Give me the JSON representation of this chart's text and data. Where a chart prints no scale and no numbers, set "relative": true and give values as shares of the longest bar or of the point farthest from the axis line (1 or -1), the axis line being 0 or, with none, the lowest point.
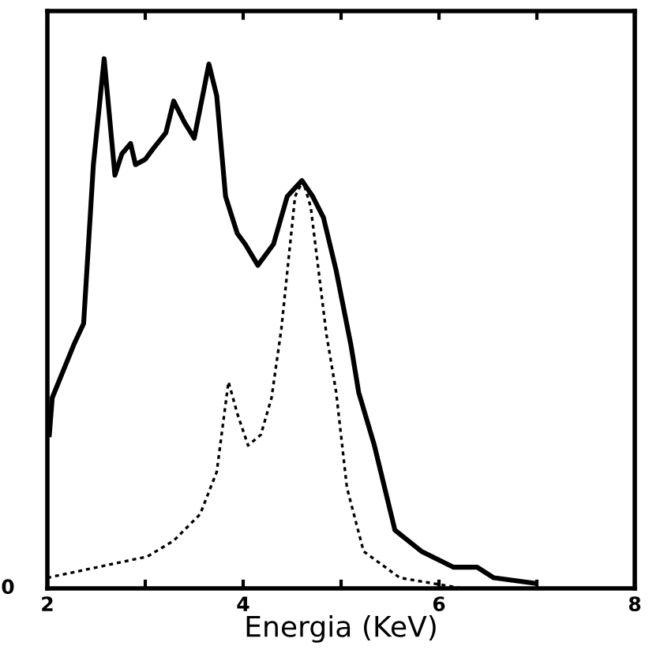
{
  "chart_data": {
    "type": "line",
    "relative": true,
    "xlabel": "Energia (KeV)",
    "xlim": [
      2,
      8
    ],
    "xticks": [
      2,
      {
        "value": 3,
        "label": null
      },
      4,
      {
        "value": 5,
        "label": null
      },
      6,
      {
        "value": 7,
        "label": null
      },
      8
    ],
    "grid": false,
    "legend": false,
    "marker": "none",
    "annotations": [
      "0"
    ],
    "series": [
      {
        "color": "#000000",
        "line_style": "solid",
        "x": [
          2.02,
          2.05,
          2.27,
          2.37,
          2.47,
          2.58,
          2.69,
          2.76,
          2.85,
          2.9,
          3.0,
          3.08,
          3.21,
          3.29,
          3.4,
          3.5,
          3.65,
          3.73,
          3.82,
          3.94,
          4.02,
          4.15,
          4.31,
          4.45,
          4.6,
          4.71,
          4.82,
          4.95,
          5.1,
          5.18,
          5.34,
          5.55,
          5.82,
          6.15,
          6.39,
          6.56,
          6.97
        ],
        "values": [
          0.29,
          0.36,
          0.46,
          0.5,
          0.8,
          1.0,
          0.78,
          0.82,
          0.84,
          0.8,
          0.81,
          0.83,
          0.86,
          0.92,
          0.88,
          0.85,
          0.99,
          0.93,
          0.74,
          0.67,
          0.65,
          0.61,
          0.65,
          0.74,
          0.77,
          0.74,
          0.7,
          0.6,
          0.46,
          0.37,
          0.27,
          0.11,
          0.07,
          0.04,
          0.04,
          0.02,
          0.01
        ]
      },
      {
        "color": "#000000",
        "line_style": "dotted",
        "x": [
          2.0,
          3.02,
          3.29,
          3.56,
          3.73,
          3.85,
          3.94,
          4.05,
          4.18,
          4.29,
          4.39,
          4.53,
          4.61,
          4.69,
          4.85,
          4.95,
          5.06,
          5.23,
          5.6,
          6.24
        ],
        "values": [
          0.02,
          0.06,
          0.09,
          0.14,
          0.22,
          0.39,
          0.33,
          0.27,
          0.29,
          0.36,
          0.49,
          0.74,
          0.77,
          0.72,
          0.48,
          0.37,
          0.19,
          0.07,
          0.02,
          0.0
        ]
      }
    ]
  }
}
